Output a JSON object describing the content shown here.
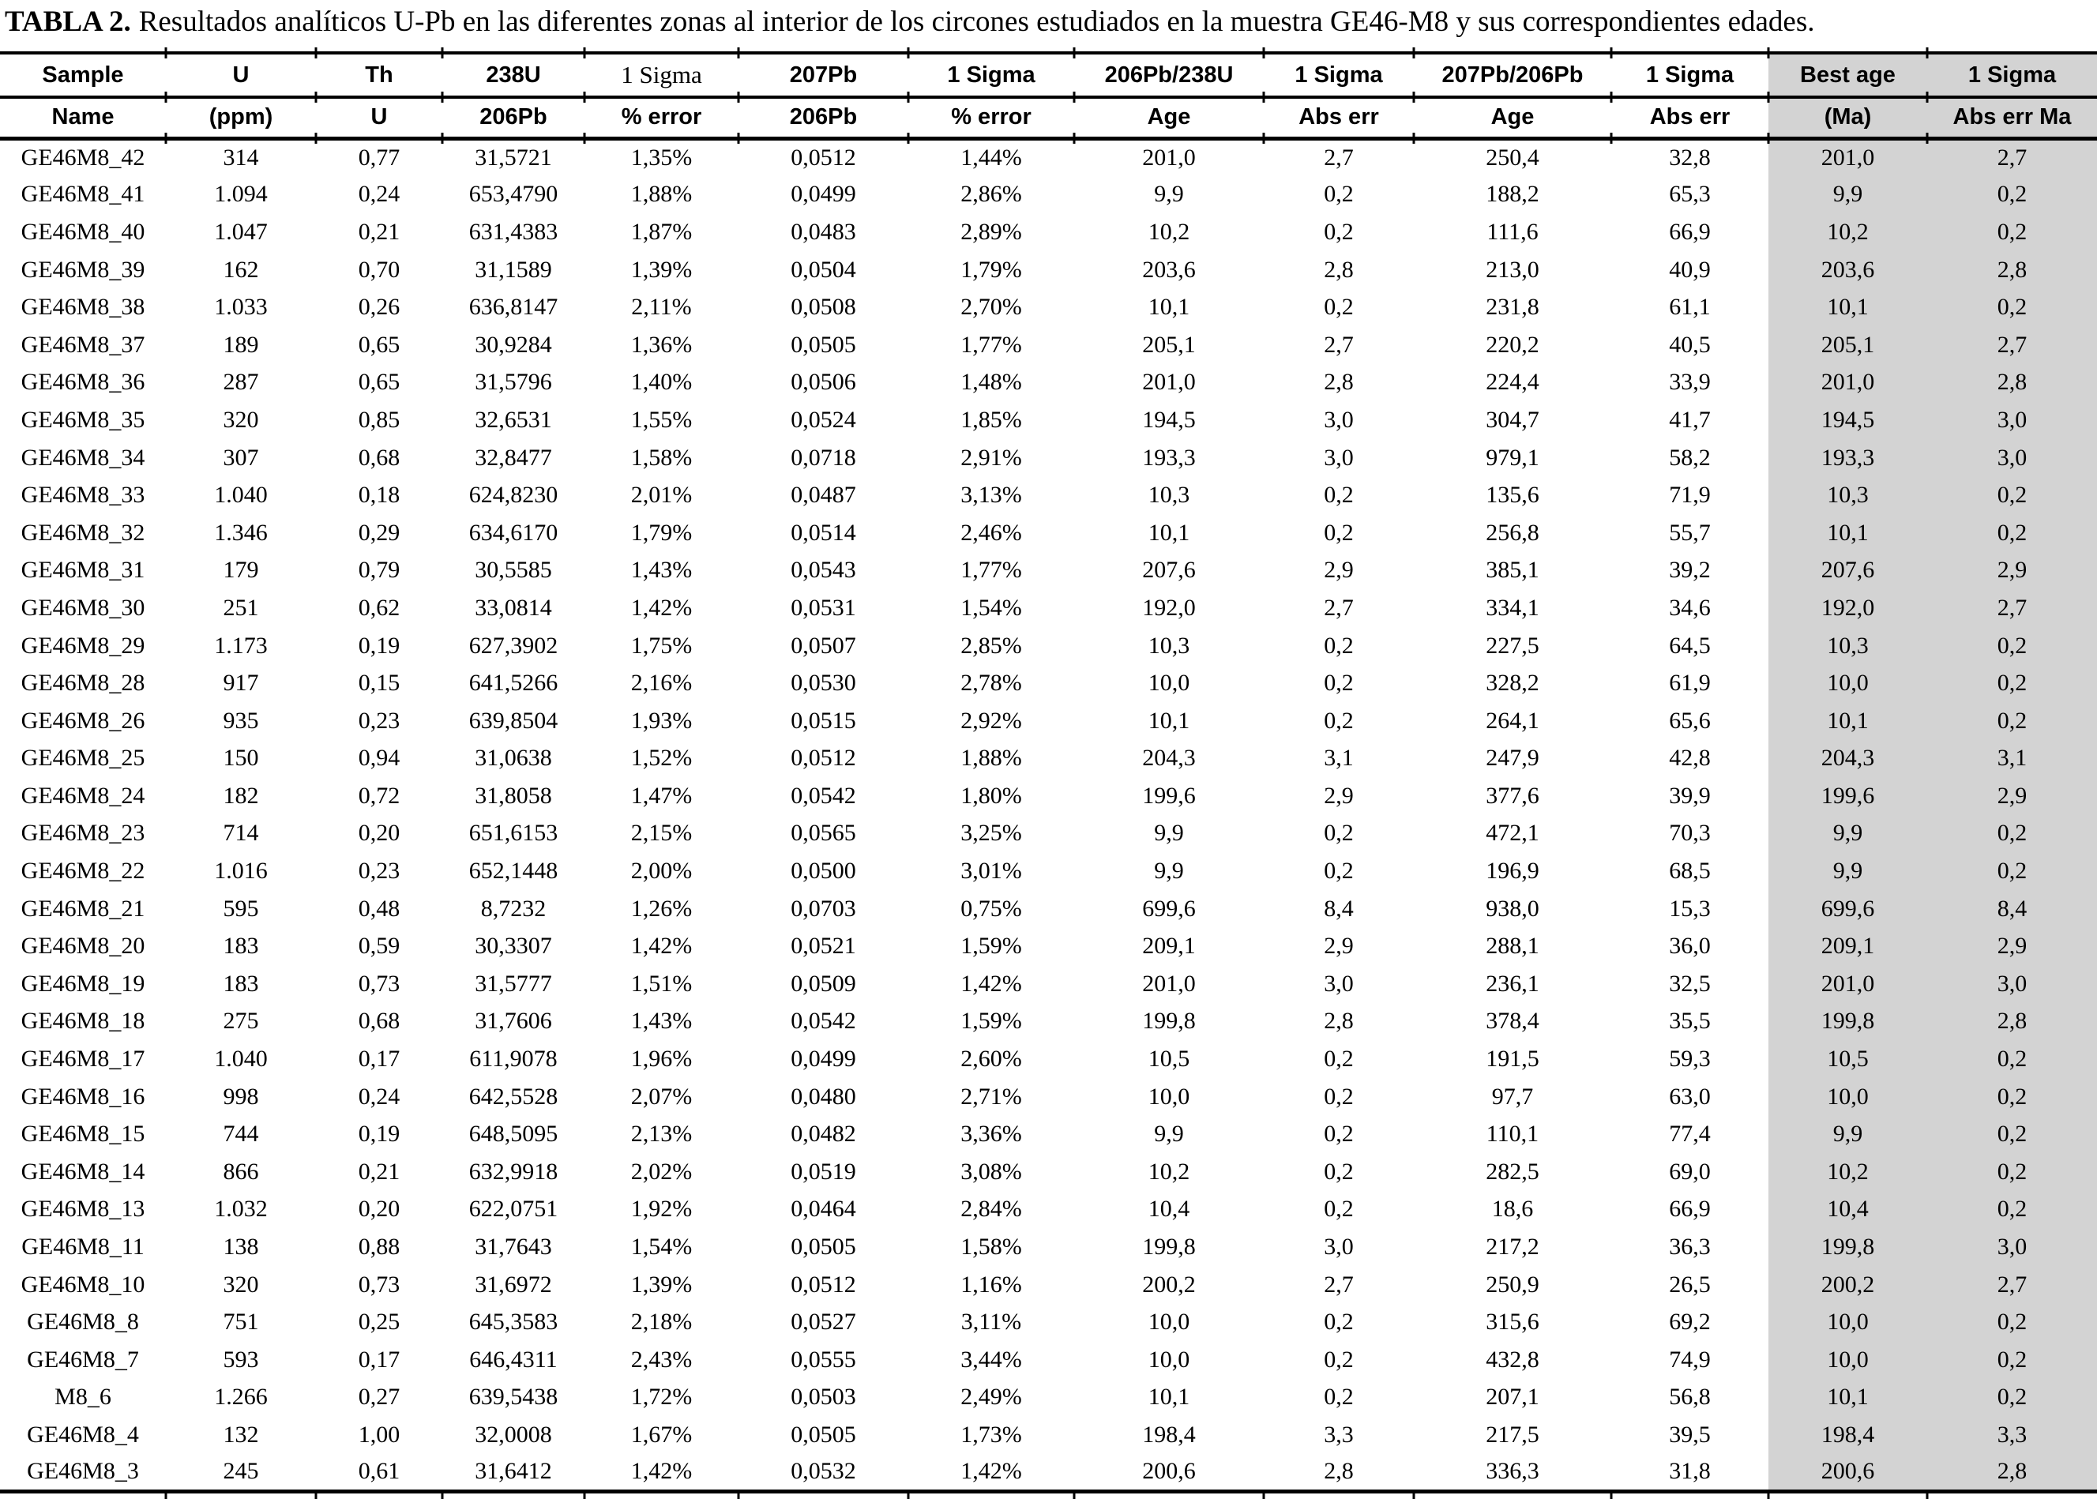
{
  "title": {
    "label": "TABLA 2.",
    "text": "Resultados analíticos U-Pb en las diferentes zonas al interior de los circones estudiados en la muestra GE46-M8 y sus correspondientes edades."
  },
  "colors": {
    "highlight_bg": "#d3d3d3",
    "rule": "#000000",
    "text": "#000000"
  },
  "table": {
    "header_row1": [
      "Sample",
      "U",
      "Th",
      "238U",
      "1 Sigma",
      "207Pb",
      "1 Sigma",
      "206Pb/238U",
      "1 Sigma",
      "207Pb/206Pb",
      "1 Sigma",
      "Best age",
      "1 Sigma"
    ],
    "header_row2": [
      "Name",
      "(ppm)",
      "U",
      "206Pb",
      "% error",
      "206Pb",
      "% error",
      "Age",
      "Abs err",
      "Age",
      "Abs err",
      "(Ma)",
      "Abs err Ma"
    ],
    "rows": [
      [
        "GE46M8_42",
        "314",
        "0,77",
        "31,5721",
        "1,35%",
        "0,0512",
        "1,44%",
        "201,0",
        "2,7",
        "250,4",
        "32,8",
        "201,0",
        "2,7"
      ],
      [
        "GE46M8_41",
        "1.094",
        "0,24",
        "653,4790",
        "1,88%",
        "0,0499",
        "2,86%",
        "9,9",
        "0,2",
        "188,2",
        "65,3",
        "9,9",
        "0,2"
      ],
      [
        "GE46M8_40",
        "1.047",
        "0,21",
        "631,4383",
        "1,87%",
        "0,0483",
        "2,89%",
        "10,2",
        "0,2",
        "111,6",
        "66,9",
        "10,2",
        "0,2"
      ],
      [
        "GE46M8_39",
        "162",
        "0,70",
        "31,1589",
        "1,39%",
        "0,0504",
        "1,79%",
        "203,6",
        "2,8",
        "213,0",
        "40,9",
        "203,6",
        "2,8"
      ],
      [
        "GE46M8_38",
        "1.033",
        "0,26",
        "636,8147",
        "2,11%",
        "0,0508",
        "2,70%",
        "10,1",
        "0,2",
        "231,8",
        "61,1",
        "10,1",
        "0,2"
      ],
      [
        "GE46M8_37",
        "189",
        "0,65",
        "30,9284",
        "1,36%",
        "0,0505",
        "1,77%",
        "205,1",
        "2,7",
        "220,2",
        "40,5",
        "205,1",
        "2,7"
      ],
      [
        "GE46M8_36",
        "287",
        "0,65",
        "31,5796",
        "1,40%",
        "0,0506",
        "1,48%",
        "201,0",
        "2,8",
        "224,4",
        "33,9",
        "201,0",
        "2,8"
      ],
      [
        "GE46M8_35",
        "320",
        "0,85",
        "32,6531",
        "1,55%",
        "0,0524",
        "1,85%",
        "194,5",
        "3,0",
        "304,7",
        "41,7",
        "194,5",
        "3,0"
      ],
      [
        "GE46M8_34",
        "307",
        "0,68",
        "32,8477",
        "1,58%",
        "0,0718",
        "2,91%",
        "193,3",
        "3,0",
        "979,1",
        "58,2",
        "193,3",
        "3,0"
      ],
      [
        "GE46M8_33",
        "1.040",
        "0,18",
        "624,8230",
        "2,01%",
        "0,0487",
        "3,13%",
        "10,3",
        "0,2",
        "135,6",
        "71,9",
        "10,3",
        "0,2"
      ],
      [
        "GE46M8_32",
        "1.346",
        "0,29",
        "634,6170",
        "1,79%",
        "0,0514",
        "2,46%",
        "10,1",
        "0,2",
        "256,8",
        "55,7",
        "10,1",
        "0,2"
      ],
      [
        "GE46M8_31",
        "179",
        "0,79",
        "30,5585",
        "1,43%",
        "0,0543",
        "1,77%",
        "207,6",
        "2,9",
        "385,1",
        "39,2",
        "207,6",
        "2,9"
      ],
      [
        "GE46M8_30",
        "251",
        "0,62",
        "33,0814",
        "1,42%",
        "0,0531",
        "1,54%",
        "192,0",
        "2,7",
        "334,1",
        "34,6",
        "192,0",
        "2,7"
      ],
      [
        "GE46M8_29",
        "1.173",
        "0,19",
        "627,3902",
        "1,75%",
        "0,0507",
        "2,85%",
        "10,3",
        "0,2",
        "227,5",
        "64,5",
        "10,3",
        "0,2"
      ],
      [
        "GE46M8_28",
        "917",
        "0,15",
        "641,5266",
        "2,16%",
        "0,0530",
        "2,78%",
        "10,0",
        "0,2",
        "328,2",
        "61,9",
        "10,0",
        "0,2"
      ],
      [
        "GE46M8_26",
        "935",
        "0,23",
        "639,8504",
        "1,93%",
        "0,0515",
        "2,92%",
        "10,1",
        "0,2",
        "264,1",
        "65,6",
        "10,1",
        "0,2"
      ],
      [
        "GE46M8_25",
        "150",
        "0,94",
        "31,0638",
        "1,52%",
        "0,0512",
        "1,88%",
        "204,3",
        "3,1",
        "247,9",
        "42,8",
        "204,3",
        "3,1"
      ],
      [
        "GE46M8_24",
        "182",
        "0,72",
        "31,8058",
        "1,47%",
        "0,0542",
        "1,80%",
        "199,6",
        "2,9",
        "377,6",
        "39,9",
        "199,6",
        "2,9"
      ],
      [
        "GE46M8_23",
        "714",
        "0,20",
        "651,6153",
        "2,15%",
        "0,0565",
        "3,25%",
        "9,9",
        "0,2",
        "472,1",
        "70,3",
        "9,9",
        "0,2"
      ],
      [
        "GE46M8_22",
        "1.016",
        "0,23",
        "652,1448",
        "2,00%",
        "0,0500",
        "3,01%",
        "9,9",
        "0,2",
        "196,9",
        "68,5",
        "9,9",
        "0,2"
      ],
      [
        "GE46M8_21",
        "595",
        "0,48",
        "8,7232",
        "1,26%",
        "0,0703",
        "0,75%",
        "699,6",
        "8,4",
        "938,0",
        "15,3",
        "699,6",
        "8,4"
      ],
      [
        "GE46M8_20",
        "183",
        "0,59",
        "30,3307",
        "1,42%",
        "0,0521",
        "1,59%",
        "209,1",
        "2,9",
        "288,1",
        "36,0",
        "209,1",
        "2,9"
      ],
      [
        "GE46M8_19",
        "183",
        "0,73",
        "31,5777",
        "1,51%",
        "0,0509",
        "1,42%",
        "201,0",
        "3,0",
        "236,1",
        "32,5",
        "201,0",
        "3,0"
      ],
      [
        "GE46M8_18",
        "275",
        "0,68",
        "31,7606",
        "1,43%",
        "0,0542",
        "1,59%",
        "199,8",
        "2,8",
        "378,4",
        "35,5",
        "199,8",
        "2,8"
      ],
      [
        "GE46M8_17",
        "1.040",
        "0,17",
        "611,9078",
        "1,96%",
        "0,0499",
        "2,60%",
        "10,5",
        "0,2",
        "191,5",
        "59,3",
        "10,5",
        "0,2"
      ],
      [
        "GE46M8_16",
        "998",
        "0,24",
        "642,5528",
        "2,07%",
        "0,0480",
        "2,71%",
        "10,0",
        "0,2",
        "97,7",
        "63,0",
        "10,0",
        "0,2"
      ],
      [
        "GE46M8_15",
        "744",
        "0,19",
        "648,5095",
        "2,13%",
        "0,0482",
        "3,36%",
        "9,9",
        "0,2",
        "110,1",
        "77,4",
        "9,9",
        "0,2"
      ],
      [
        "GE46M8_14",
        "866",
        "0,21",
        "632,9918",
        "2,02%",
        "0,0519",
        "3,08%",
        "10,2",
        "0,2",
        "282,5",
        "69,0",
        "10,2",
        "0,2"
      ],
      [
        "GE46M8_13",
        "1.032",
        "0,20",
        "622,0751",
        "1,92%",
        "0,0464",
        "2,84%",
        "10,4",
        "0,2",
        "18,6",
        "66,9",
        "10,4",
        "0,2"
      ],
      [
        "GE46M8_11",
        "138",
        "0,88",
        "31,7643",
        "1,54%",
        "0,0505",
        "1,58%",
        "199,8",
        "3,0",
        "217,2",
        "36,3",
        "199,8",
        "3,0"
      ],
      [
        "GE46M8_10",
        "320",
        "0,73",
        "31,6972",
        "1,39%",
        "0,0512",
        "1,16%",
        "200,2",
        "2,7",
        "250,9",
        "26,5",
        "200,2",
        "2,7"
      ],
      [
        "GE46M8_8",
        "751",
        "0,25",
        "645,3583",
        "2,18%",
        "0,0527",
        "3,11%",
        "10,0",
        "0,2",
        "315,6",
        "69,2",
        "10,0",
        "0,2"
      ],
      [
        "GE46M8_7",
        "593",
        "0,17",
        "646,4311",
        "2,43%",
        "0,0555",
        "3,44%",
        "10,0",
        "0,2",
        "432,8",
        "74,9",
        "10,0",
        "0,2"
      ],
      [
        "M8_6",
        "1.266",
        "0,27",
        "639,5438",
        "1,72%",
        "0,0503",
        "2,49%",
        "10,1",
        "0,2",
        "207,1",
        "56,8",
        "10,1",
        "0,2"
      ],
      [
        "GE46M8_4",
        "132",
        "1,00",
        "32,0008",
        "1,67%",
        "0,0505",
        "1,73%",
        "198,4",
        "3,3",
        "217,5",
        "39,5",
        "198,4",
        "3,3"
      ],
      [
        "GE46M8_3",
        "245",
        "0,61",
        "31,6412",
        "1,42%",
        "0,0532",
        "1,42%",
        "200,6",
        "2,8",
        "336,3",
        "31,8",
        "200,6",
        "2,8"
      ]
    ]
  }
}
